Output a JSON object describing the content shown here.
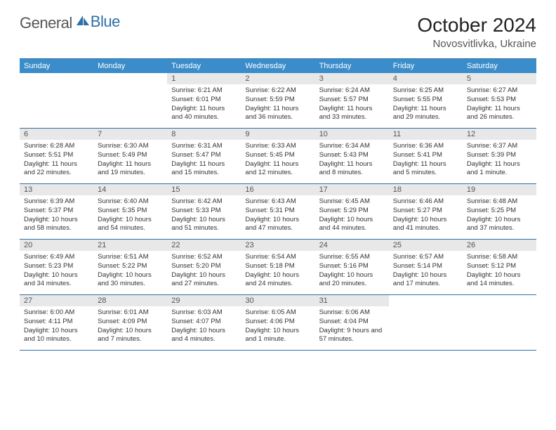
{
  "logo": {
    "text_left": "General",
    "text_right": "Blue",
    "accent_color": "#2f6fa8"
  },
  "header": {
    "title": "October 2024",
    "location": "Novosvitlivka, Ukraine"
  },
  "colors": {
    "header_row_bg": "#3a8dca",
    "header_row_text": "#ffffff",
    "border": "#2f6fa8",
    "daynum_bg": "#e8e8e8",
    "daynum_text": "#555555",
    "body_text": "#333333"
  },
  "weekdays": [
    "Sunday",
    "Monday",
    "Tuesday",
    "Wednesday",
    "Thursday",
    "Friday",
    "Saturday"
  ],
  "weeks": [
    [
      {
        "n": "",
        "lines": []
      },
      {
        "n": "",
        "lines": []
      },
      {
        "n": "1",
        "lines": [
          "Sunrise: 6:21 AM",
          "Sunset: 6:01 PM",
          "Daylight: 11 hours and 40 minutes."
        ]
      },
      {
        "n": "2",
        "lines": [
          "Sunrise: 6:22 AM",
          "Sunset: 5:59 PM",
          "Daylight: 11 hours and 36 minutes."
        ]
      },
      {
        "n": "3",
        "lines": [
          "Sunrise: 6:24 AM",
          "Sunset: 5:57 PM",
          "Daylight: 11 hours and 33 minutes."
        ]
      },
      {
        "n": "4",
        "lines": [
          "Sunrise: 6:25 AM",
          "Sunset: 5:55 PM",
          "Daylight: 11 hours and 29 minutes."
        ]
      },
      {
        "n": "5",
        "lines": [
          "Sunrise: 6:27 AM",
          "Sunset: 5:53 PM",
          "Daylight: 11 hours and 26 minutes."
        ]
      }
    ],
    [
      {
        "n": "6",
        "lines": [
          "Sunrise: 6:28 AM",
          "Sunset: 5:51 PM",
          "Daylight: 11 hours and 22 minutes."
        ]
      },
      {
        "n": "7",
        "lines": [
          "Sunrise: 6:30 AM",
          "Sunset: 5:49 PM",
          "Daylight: 11 hours and 19 minutes."
        ]
      },
      {
        "n": "8",
        "lines": [
          "Sunrise: 6:31 AM",
          "Sunset: 5:47 PM",
          "Daylight: 11 hours and 15 minutes."
        ]
      },
      {
        "n": "9",
        "lines": [
          "Sunrise: 6:33 AM",
          "Sunset: 5:45 PM",
          "Daylight: 11 hours and 12 minutes."
        ]
      },
      {
        "n": "10",
        "lines": [
          "Sunrise: 6:34 AM",
          "Sunset: 5:43 PM",
          "Daylight: 11 hours and 8 minutes."
        ]
      },
      {
        "n": "11",
        "lines": [
          "Sunrise: 6:36 AM",
          "Sunset: 5:41 PM",
          "Daylight: 11 hours and 5 minutes."
        ]
      },
      {
        "n": "12",
        "lines": [
          "Sunrise: 6:37 AM",
          "Sunset: 5:39 PM",
          "Daylight: 11 hours and 1 minute."
        ]
      }
    ],
    [
      {
        "n": "13",
        "lines": [
          "Sunrise: 6:39 AM",
          "Sunset: 5:37 PM",
          "Daylight: 10 hours and 58 minutes."
        ]
      },
      {
        "n": "14",
        "lines": [
          "Sunrise: 6:40 AM",
          "Sunset: 5:35 PM",
          "Daylight: 10 hours and 54 minutes."
        ]
      },
      {
        "n": "15",
        "lines": [
          "Sunrise: 6:42 AM",
          "Sunset: 5:33 PM",
          "Daylight: 10 hours and 51 minutes."
        ]
      },
      {
        "n": "16",
        "lines": [
          "Sunrise: 6:43 AM",
          "Sunset: 5:31 PM",
          "Daylight: 10 hours and 47 minutes."
        ]
      },
      {
        "n": "17",
        "lines": [
          "Sunrise: 6:45 AM",
          "Sunset: 5:29 PM",
          "Daylight: 10 hours and 44 minutes."
        ]
      },
      {
        "n": "18",
        "lines": [
          "Sunrise: 6:46 AM",
          "Sunset: 5:27 PM",
          "Daylight: 10 hours and 41 minutes."
        ]
      },
      {
        "n": "19",
        "lines": [
          "Sunrise: 6:48 AM",
          "Sunset: 5:25 PM",
          "Daylight: 10 hours and 37 minutes."
        ]
      }
    ],
    [
      {
        "n": "20",
        "lines": [
          "Sunrise: 6:49 AM",
          "Sunset: 5:23 PM",
          "Daylight: 10 hours and 34 minutes."
        ]
      },
      {
        "n": "21",
        "lines": [
          "Sunrise: 6:51 AM",
          "Sunset: 5:22 PM",
          "Daylight: 10 hours and 30 minutes."
        ]
      },
      {
        "n": "22",
        "lines": [
          "Sunrise: 6:52 AM",
          "Sunset: 5:20 PM",
          "Daylight: 10 hours and 27 minutes."
        ]
      },
      {
        "n": "23",
        "lines": [
          "Sunrise: 6:54 AM",
          "Sunset: 5:18 PM",
          "Daylight: 10 hours and 24 minutes."
        ]
      },
      {
        "n": "24",
        "lines": [
          "Sunrise: 6:55 AM",
          "Sunset: 5:16 PM",
          "Daylight: 10 hours and 20 minutes."
        ]
      },
      {
        "n": "25",
        "lines": [
          "Sunrise: 6:57 AM",
          "Sunset: 5:14 PM",
          "Daylight: 10 hours and 17 minutes."
        ]
      },
      {
        "n": "26",
        "lines": [
          "Sunrise: 6:58 AM",
          "Sunset: 5:12 PM",
          "Daylight: 10 hours and 14 minutes."
        ]
      }
    ],
    [
      {
        "n": "27",
        "lines": [
          "Sunrise: 6:00 AM",
          "Sunset: 4:11 PM",
          "Daylight: 10 hours and 10 minutes."
        ]
      },
      {
        "n": "28",
        "lines": [
          "Sunrise: 6:01 AM",
          "Sunset: 4:09 PM",
          "Daylight: 10 hours and 7 minutes."
        ]
      },
      {
        "n": "29",
        "lines": [
          "Sunrise: 6:03 AM",
          "Sunset: 4:07 PM",
          "Daylight: 10 hours and 4 minutes."
        ]
      },
      {
        "n": "30",
        "lines": [
          "Sunrise: 6:05 AM",
          "Sunset: 4:06 PM",
          "Daylight: 10 hours and 1 minute."
        ]
      },
      {
        "n": "31",
        "lines": [
          "Sunrise: 6:06 AM",
          "Sunset: 4:04 PM",
          "Daylight: 9 hours and 57 minutes."
        ]
      },
      {
        "n": "",
        "lines": []
      },
      {
        "n": "",
        "lines": []
      }
    ]
  ]
}
